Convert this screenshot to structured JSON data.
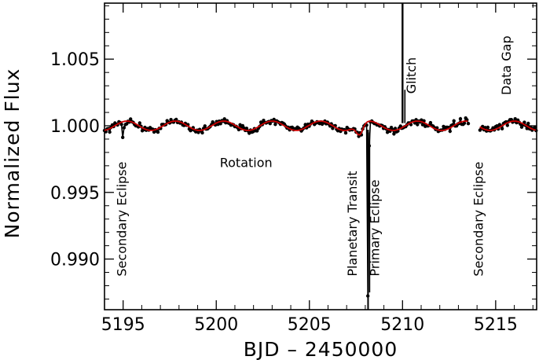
{
  "chart_data": {
    "type": "scatter",
    "title": "",
    "xlabel": "BJD – 2450000",
    "ylabel": "Normalized Flux",
    "xlim": [
      5194.0,
      5217.2
    ],
    "ylim": [
      0.9862,
      1.0092
    ],
    "x_ticks": [
      5195,
      5200,
      5205,
      5210,
      5215
    ],
    "x_tick_labels": [
      "5195",
      "5200",
      "5205",
      "5210",
      "5215"
    ],
    "y_ticks": [
      0.99,
      0.995,
      1.0,
      1.005
    ],
    "y_tick_labels": [
      "0.990",
      "0.995",
      "1.000",
      "1.005"
    ],
    "model": {
      "name": "rotation model",
      "color": "#cc0000",
      "baseline": 1.0,
      "amplitude": 0.00035,
      "period": 2.6,
      "phase_x": 5195.2,
      "transit": {
        "center": 5207.7,
        "depth": 0.0008,
        "width": 0.35
      }
    },
    "data_series": {
      "name": "photometry",
      "color": "#000000",
      "x_start": 5194.0,
      "x_end": 5217.2,
      "cadence": 0.07,
      "scatter": 0.00025,
      "gaps": [
        [
          5213.55,
          5214.15
        ]
      ]
    },
    "features": [
      {
        "label": "Secondary Eclipse",
        "x": 5195.0,
        "depth": 0.0012,
        "width": 0.08
      },
      {
        "label": "Primary Eclipse",
        "x": 5208.15,
        "depth": 0.0138,
        "width": 0.06
      },
      {
        "label": "Secondary Eclipse",
        "x": 5214.1,
        "depth": 0.0012,
        "width": 0.08
      }
    ],
    "glitch": {
      "label": "Glitch",
      "x": 5210.0,
      "value": 1.0092
    },
    "annotations": [
      {
        "text": "Secondary Eclipse",
        "x": 5195.15,
        "y": 0.9887,
        "rotate": true
      },
      {
        "text": "Rotation",
        "x": 5201.6,
        "y": 0.9969,
        "rotate": false
      },
      {
        "text": "Planetary Transit",
        "x": 5207.55,
        "y": 0.9887,
        "rotate": true
      },
      {
        "text": "Primary Eclipse",
        "x": 5208.75,
        "y": 0.9887,
        "rotate": true
      },
      {
        "text": "Glitch",
        "x": 5210.7,
        "y": 1.0024,
        "rotate": true
      },
      {
        "text": "Secondary Eclipse",
        "x": 5214.3,
        "y": 0.9887,
        "rotate": true
      },
      {
        "text": "Data Gap",
        "x": 5215.8,
        "y": 1.0023,
        "rotate": true
      }
    ]
  }
}
